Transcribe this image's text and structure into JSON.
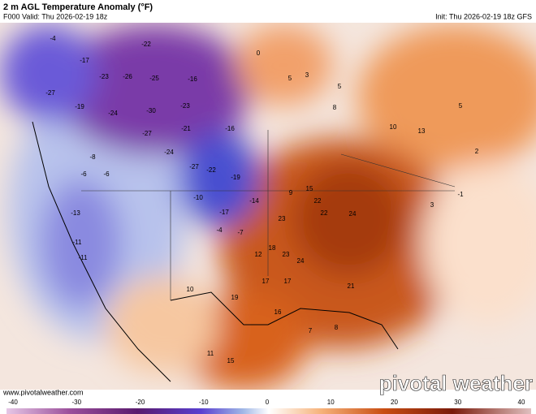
{
  "header": {
    "title": "2 m AGL Temperature Anomaly (°F)",
    "valid": "F000 Valid: Thu 2026-02-19 18z",
    "init": "Init: Thu 2026-02-19 18z GFS"
  },
  "footer": {
    "url": "www.pivotalweather.com",
    "logo": "pivotal weather"
  },
  "colorbar": {
    "ticks": [
      -40,
      -30,
      -20,
      -10,
      0,
      10,
      20,
      30,
      40
    ]
  },
  "map_labels": [
    -4,
    -22,
    -17,
    -23,
    -26,
    -25,
    -16,
    -27,
    -19,
    -30,
    -24,
    -23,
    -21,
    -16,
    -27,
    -24,
    -27,
    -22,
    -19,
    -14,
    -17,
    -10,
    -8,
    -6,
    -6,
    -13,
    -11,
    -11,
    -4,
    -7,
    5,
    5,
    8,
    10,
    13,
    5,
    15,
    22,
    24,
    22,
    23,
    24,
    23,
    17,
    21,
    19,
    16,
    10,
    7,
    8,
    15,
    11,
    -1,
    3,
    2,
    0,
    3,
    9,
    18,
    12,
    17
  ]
}
